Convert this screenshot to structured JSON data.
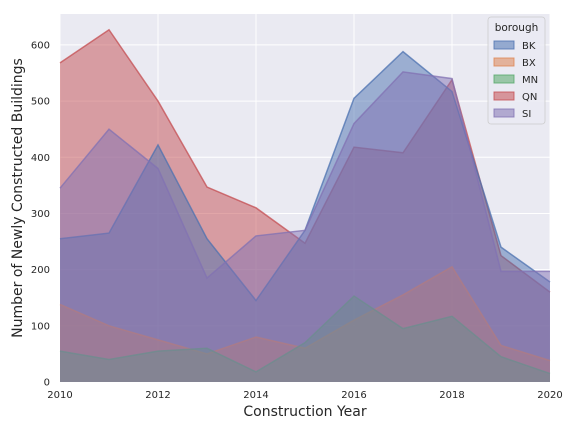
{
  "chart_data": {
    "type": "area",
    "xlabel": "Construction Year",
    "ylabel": "Number of Newly Constructed Buildings",
    "legend_title": "borough",
    "legend_position": "top-right",
    "grid": true,
    "stacked": false,
    "xlim": [
      2010,
      2020
    ],
    "ylim": [
      0,
      655
    ],
    "x": [
      2010,
      2011,
      2012,
      2013,
      2014,
      2015,
      2016,
      2017,
      2018,
      2019,
      2020
    ],
    "x_ticks": [
      2010,
      2012,
      2014,
      2016,
      2018,
      2020
    ],
    "y_ticks": [
      0,
      100,
      200,
      300,
      400,
      500,
      600
    ],
    "draw_order": [
      "QN",
      "BK",
      "BX",
      "MN",
      "SI"
    ],
    "series": [
      {
        "name": "BK",
        "color": "#4c72b0",
        "values": [
          255,
          265,
          422,
          255,
          145,
          270,
          505,
          588,
          517,
          240,
          178
        ]
      },
      {
        "name": "BX",
        "color": "#dd8452",
        "values": [
          138,
          100,
          75,
          50,
          80,
          60,
          110,
          155,
          205,
          65,
          38
        ]
      },
      {
        "name": "MN",
        "color": "#55a868",
        "values": [
          55,
          40,
          55,
          60,
          18,
          70,
          153,
          95,
          117,
          45,
          15
        ]
      },
      {
        "name": "QN",
        "color": "#c44e52",
        "values": [
          568,
          627,
          500,
          347,
          310,
          247,
          418,
          408,
          538,
          225,
          160
        ]
      },
      {
        "name": "SI",
        "color": "#8172b3",
        "values": [
          345,
          450,
          380,
          185,
          260,
          270,
          460,
          552,
          540,
          197,
          197
        ]
      }
    ]
  }
}
